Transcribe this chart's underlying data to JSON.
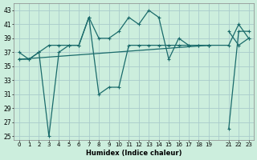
{
  "xlabel": "Humidex (Indice chaleur)",
  "background_color": "#cceedd",
  "grid_color": "#aacccc",
  "line_color": "#1a6b6b",
  "xlim": [
    -0.5,
    23.5
  ],
  "ylim": [
    24.5,
    44
  ],
  "xtick_positions": [
    0,
    1,
    2,
    3,
    4,
    5,
    6,
    7,
    8,
    9,
    10,
    11,
    12,
    13,
    14,
    15,
    16,
    17,
    18,
    19,
    21,
    22,
    23
  ],
  "xtick_labels": [
    "0",
    "1",
    "2",
    "3",
    "4",
    "5",
    "6",
    "7",
    "8",
    "9",
    "10",
    "11",
    "12",
    "13",
    "14",
    "15",
    "16",
    "17",
    "18",
    "19",
    "21",
    "22",
    "23"
  ],
  "yticks": [
    25,
    27,
    29,
    31,
    33,
    35,
    37,
    39,
    41,
    43
  ],
  "lines": [
    {
      "segments": [
        {
          "x": [
            0,
            1,
            2,
            3,
            4,
            5,
            6,
            7,
            8,
            9,
            10,
            11,
            12,
            13,
            14,
            15,
            16,
            17,
            18,
            19
          ],
          "y": [
            36,
            36,
            37,
            38,
            38,
            38,
            38,
            42,
            39,
            39,
            40,
            42,
            41,
            43,
            42,
            36,
            39,
            38,
            38,
            38
          ]
        },
        {
          "x": [
            21,
            22,
            23
          ],
          "y": [
            40,
            38,
            39
          ]
        }
      ]
    },
    {
      "segments": [
        {
          "x": [
            0,
            1,
            2,
            3,
            4,
            5,
            6,
            7,
            8,
            9,
            10,
            11,
            12,
            13,
            14,
            15,
            16,
            17,
            18,
            19
          ],
          "y": [
            37,
            36,
            37,
            25,
            37,
            38,
            38,
            42,
            31,
            32,
            32,
            38,
            38,
            38,
            38,
            38,
            38,
            38,
            38,
            38
          ]
        },
        {
          "x": [
            21,
            22,
            23
          ],
          "y": [
            26,
            40,
            40
          ]
        }
      ]
    },
    {
      "segments": [
        {
          "x": [
            0,
            19,
            21,
            22,
            23
          ],
          "y": [
            36,
            38,
            38,
            41,
            39
          ]
        }
      ]
    }
  ]
}
